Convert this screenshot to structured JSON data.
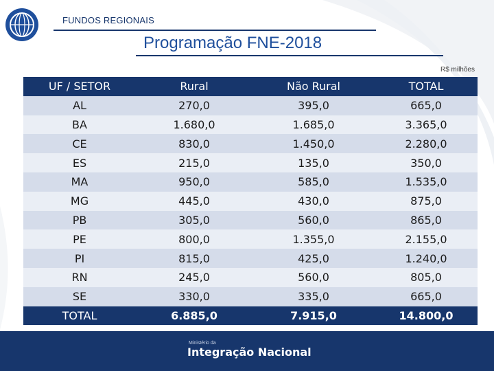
{
  "header": {
    "label": "FUNDOS REGIONAIS",
    "title": "Programação FNE-2018",
    "units": "R$ milhões"
  },
  "table": {
    "columns": [
      "UF / SETOR",
      "Rural",
      "Não Rural",
      "TOTAL"
    ],
    "rows": [
      [
        "AL",
        "270,0",
        "395,0",
        "665,0"
      ],
      [
        "BA",
        "1.680,0",
        "1.685,0",
        "3.365,0"
      ],
      [
        "CE",
        "830,0",
        "1.450,0",
        "2.280,0"
      ],
      [
        "ES",
        "215,0",
        "135,0",
        "350,0"
      ],
      [
        "MA",
        "950,0",
        "585,0",
        "1.535,0"
      ],
      [
        "MG",
        "445,0",
        "430,0",
        "875,0"
      ],
      [
        "PB",
        "305,0",
        "560,0",
        "865,0"
      ],
      [
        "PE",
        "800,0",
        "1.355,0",
        "2.155,0"
      ],
      [
        "PI",
        "815,0",
        "425,0",
        "1.240,0"
      ],
      [
        "RN",
        "245,0",
        "560,0",
        "805,0"
      ],
      [
        "SE",
        "330,0",
        "335,0",
        "665,0"
      ]
    ],
    "total": [
      "TOTAL",
      "6.885,0",
      "7.915,0",
      "14.800,0"
    ]
  },
  "footer": {
    "small": "Ministério da",
    "brand": "Integração Nacional"
  },
  "colors": {
    "navy": "#17366c",
    "title_blue": "#1f4f9c",
    "row_dark": "#d5dcea",
    "row_light": "#eaeef5"
  },
  "icons": {
    "logo": "circular-emblem-icon"
  }
}
